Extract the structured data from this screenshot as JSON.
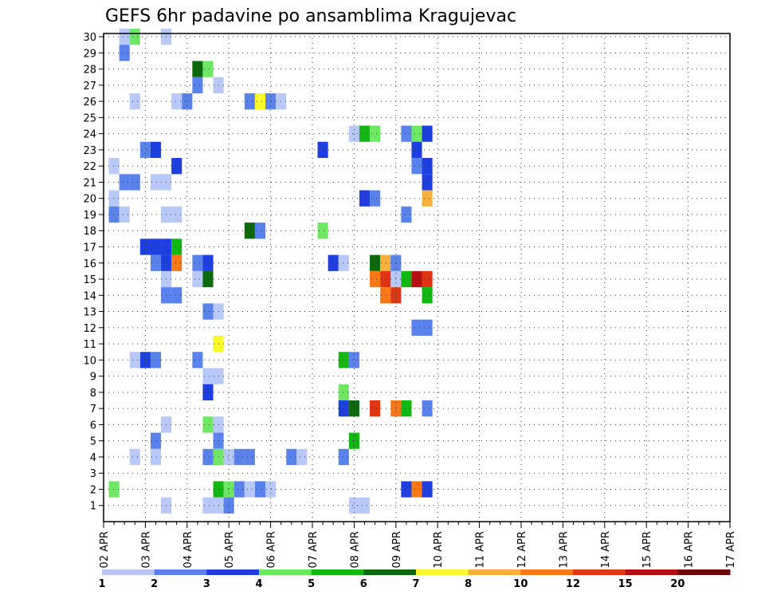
{
  "chart_data": {
    "type": "heatmap",
    "title": "GEFS 6hr padavine po ansamblima Kragujevac",
    "x_tick_labels": [
      "02 APR",
      "03 APR",
      "04 APR",
      "05 APR",
      "06 APR",
      "07 APR",
      "08 APR",
      "09 APR",
      "10 APR",
      "11 APR",
      "12 APR",
      "13 APR",
      "14 APR",
      "15 APR",
      "16 APR",
      "17 APR"
    ],
    "y_tick_labels": [
      "1",
      "2",
      "3",
      "4",
      "5",
      "6",
      "7",
      "8",
      "9",
      "10",
      "11",
      "12",
      "13",
      "14",
      "15",
      "16",
      "17",
      "18",
      "19",
      "20",
      "21",
      "22",
      "23",
      "24",
      "25",
      "26",
      "27",
      "28",
      "29",
      "30"
    ],
    "y_range": [
      1,
      30
    ],
    "grid": true,
    "legend": "bottom",
    "colorbar": {
      "labels": [
        "1",
        "2",
        "3",
        "4",
        "5",
        "6",
        "7",
        "8",
        "10",
        "12",
        "15",
        "20"
      ],
      "colors": [
        "#b8c8f8",
        "#5a82ec",
        "#1e3ee0",
        "#6ee862",
        "#12b812",
        "#0c6a0c",
        "#f8f82a",
        "#f6b03c",
        "#f87818",
        "#e03414",
        "#b81010",
        "#6a0808"
      ]
    },
    "cells": [
      [
        0.5,
        30,
        1
      ],
      [
        0.75,
        30,
        4
      ],
      [
        0.5,
        29,
        2
      ],
      [
        1.5,
        30,
        1
      ],
      [
        2.25,
        28,
        6
      ],
      [
        2.5,
        28,
        4
      ],
      [
        2.25,
        27,
        2
      ],
      [
        2.75,
        27,
        1
      ],
      [
        1.75,
        26,
        1
      ],
      [
        2.0,
        26,
        2
      ],
      [
        0.75,
        26,
        1
      ],
      [
        3.5,
        26,
        2
      ],
      [
        3.75,
        26,
        7
      ],
      [
        4.0,
        26,
        2
      ],
      [
        4.25,
        26,
        1
      ],
      [
        5.25,
        23,
        3
      ],
      [
        6.0,
        24,
        1
      ],
      [
        6.25,
        24,
        5
      ],
      [
        6.5,
        24,
        4
      ],
      [
        7.25,
        24,
        2
      ],
      [
        7.5,
        24,
        4
      ],
      [
        7.75,
        24,
        3
      ],
      [
        7.5,
        23,
        3
      ],
      [
        7.5,
        22,
        2
      ],
      [
        7.75,
        22,
        3
      ],
      [
        7.75,
        21,
        3
      ],
      [
        7.75,
        20,
        8
      ],
      [
        6.5,
        20,
        2
      ],
      [
        6.25,
        20,
        3
      ],
      [
        1.25,
        23,
        3
      ],
      [
        1.0,
        23,
        2
      ],
      [
        1.75,
        22,
        3
      ],
      [
        0.25,
        22,
        1
      ],
      [
        1.25,
        21,
        1
      ],
      [
        1.5,
        21,
        1
      ],
      [
        0.5,
        21,
        2
      ],
      [
        0.75,
        21,
        2
      ],
      [
        0.25,
        20,
        1
      ],
      [
        0.25,
        19,
        2
      ],
      [
        0.5,
        19,
        1
      ],
      [
        1.5,
        19,
        1
      ],
      [
        1.75,
        19,
        1
      ],
      [
        3.5,
        18,
        6
      ],
      [
        3.75,
        18,
        2
      ],
      [
        5.25,
        18,
        4
      ],
      [
        7.25,
        19,
        2
      ],
      [
        1.0,
        17,
        3
      ],
      [
        1.25,
        17,
        3
      ],
      [
        1.5,
        17,
        3
      ],
      [
        1.75,
        17,
        5
      ],
      [
        1.5,
        16,
        3
      ],
      [
        1.75,
        16,
        9
      ],
      [
        1.25,
        16,
        2
      ],
      [
        1.5,
        15,
        1
      ],
      [
        2.25,
        16,
        2
      ],
      [
        2.5,
        16,
        3
      ],
      [
        2.25,
        15,
        1
      ],
      [
        2.5,
        15,
        6
      ],
      [
        6.5,
        16,
        6
      ],
      [
        6.75,
        16,
        8
      ],
      [
        7.0,
        16,
        2
      ],
      [
        7.0,
        15,
        1
      ],
      [
        6.5,
        15,
        9
      ],
      [
        6.75,
        15,
        10
      ],
      [
        6.75,
        14,
        9
      ],
      [
        5.5,
        16,
        3
      ],
      [
        5.75,
        16,
        1
      ],
      [
        7.25,
        15,
        5
      ],
      [
        7.5,
        15,
        11
      ],
      [
        7.75,
        15,
        10
      ],
      [
        1.5,
        14,
        2
      ],
      [
        1.75,
        14,
        2
      ],
      [
        2.75,
        13,
        1
      ],
      [
        2.5,
        13,
        2
      ],
      [
        7.75,
        14,
        5
      ],
      [
        7.0,
        14,
        10
      ],
      [
        7.5,
        12,
        2
      ],
      [
        7.75,
        12,
        2
      ],
      [
        2.75,
        11,
        7
      ],
      [
        1.25,
        10,
        2
      ],
      [
        1.0,
        10,
        3
      ],
      [
        0.75,
        10,
        1
      ],
      [
        2.25,
        10,
        2
      ],
      [
        5.75,
        10,
        5
      ],
      [
        6.0,
        10,
        2
      ],
      [
        2.5,
        9,
        1
      ],
      [
        2.75,
        9,
        1
      ],
      [
        2.5,
        8,
        3
      ],
      [
        5.75,
        8,
        4
      ],
      [
        5.75,
        7,
        3
      ],
      [
        6.0,
        7,
        6
      ],
      [
        6.5,
        7,
        10
      ],
      [
        7.0,
        7,
        9
      ],
      [
        7.25,
        7,
        5
      ],
      [
        7.75,
        7,
        2
      ],
      [
        2.5,
        6,
        4
      ],
      [
        2.75,
        6,
        1
      ],
      [
        1.5,
        6,
        1
      ],
      [
        2.75,
        5,
        2
      ],
      [
        6.0,
        5,
        5
      ],
      [
        1.25,
        5,
        2
      ],
      [
        1.25,
        4,
        1
      ],
      [
        0.75,
        4,
        1
      ],
      [
        2.5,
        4,
        2
      ],
      [
        2.75,
        4,
        4
      ],
      [
        3.0,
        4,
        1
      ],
      [
        3.25,
        4,
        2
      ],
      [
        3.5,
        4,
        2
      ],
      [
        4.5,
        4,
        2
      ],
      [
        4.75,
        4,
        1
      ],
      [
        5.75,
        4,
        2
      ],
      [
        2.75,
        2,
        5
      ],
      [
        3.0,
        2,
        4
      ],
      [
        3.25,
        2,
        2
      ],
      [
        3.5,
        2,
        1
      ],
      [
        3.75,
        2,
        2
      ],
      [
        4.0,
        2,
        1
      ],
      [
        7.25,
        2,
        3
      ],
      [
        7.5,
        2,
        9
      ],
      [
        7.75,
        2,
        3
      ],
      [
        0.25,
        2,
        4
      ],
      [
        2.5,
        1,
        1
      ],
      [
        2.75,
        1,
        1
      ],
      [
        3.0,
        1,
        2
      ],
      [
        1.5,
        1,
        1
      ],
      [
        6.0,
        1,
        1
      ],
      [
        6.25,
        1,
        1
      ]
    ]
  }
}
